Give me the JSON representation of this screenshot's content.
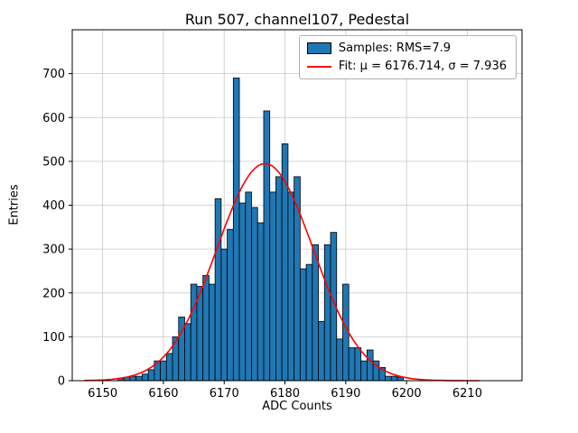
{
  "chart_data": {
    "type": "bar",
    "title": "Run 507, channel107, Pedestal",
    "xlabel": "ADC Counts",
    "ylabel": "Entries",
    "xlim": [
      6145,
      6219
    ],
    "ylim": [
      0,
      800
    ],
    "xticks": [
      6150,
      6160,
      6170,
      6180,
      6190,
      6200,
      6210
    ],
    "yticks": [
      0,
      100,
      200,
      300,
      400,
      500,
      600,
      700
    ],
    "grid": true,
    "bar_color": "#1f77b4",
    "bar_edge_color": "#000000",
    "fit_color": "#ff0000",
    "bin_width": 1,
    "bin_centers": [
      6153,
      6154,
      6155,
      6156,
      6157,
      6158,
      6159,
      6160,
      6161,
      6162,
      6163,
      6164,
      6165,
      6166,
      6167,
      6168,
      6169,
      6170,
      6171,
      6172,
      6173,
      6174,
      6175,
      6176,
      6177,
      6178,
      6179,
      6180,
      6181,
      6182,
      6183,
      6184,
      6185,
      6186,
      6187,
      6188,
      6189,
      6190,
      6191,
      6192,
      6193,
      6194,
      6195,
      6196,
      6197,
      6198,
      6199
    ],
    "values": [
      5,
      8,
      10,
      10,
      15,
      25,
      45,
      45,
      62,
      100,
      145,
      130,
      220,
      215,
      240,
      220,
      415,
      300,
      345,
      690,
      405,
      430,
      395,
      360,
      615,
      430,
      465,
      540,
      430,
      465,
      255,
      265,
      310,
      135,
      310,
      338,
      95,
      220,
      75,
      75,
      45,
      70,
      45,
      30,
      10,
      10,
      8
    ],
    "fit": {
      "mu": 6176.714,
      "sigma": 7.936,
      "amplitude": 495
    },
    "legend": {
      "entries": [
        {
          "type": "patch",
          "label": "Samples: RMS=7.9",
          "color": "#1f77b4"
        },
        {
          "type": "line",
          "label": "Fit: μ = 6176.714, σ = 7.936",
          "color": "#ff0000"
        }
      ]
    }
  }
}
